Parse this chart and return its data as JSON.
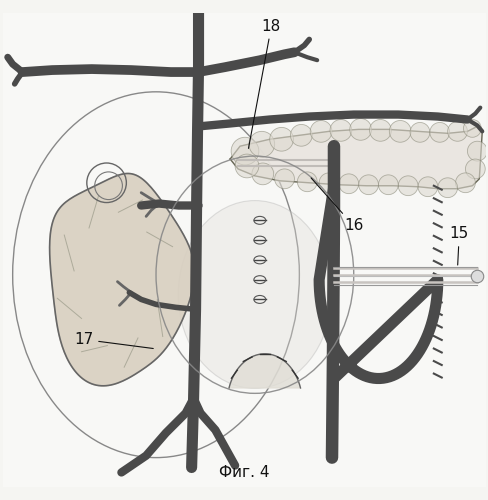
{
  "caption": "Фиг. 4",
  "caption_fontsize": 11,
  "bg_color": "#f5f5f2",
  "vessel_color": "#4a4a4a",
  "vessel_lw_main": 7,
  "vessel_lw_branch": 5,
  "organ_edge": "#555555",
  "pancreas_fill": "#e8e4de",
  "spleen_fill": "#d8cfc0",
  "tube_fill": "#d8d4d0",
  "label_color": "#111111",
  "label_fontsize": 10,
  "figsize": [
    4.89,
    5.0
  ],
  "dpi": 100
}
